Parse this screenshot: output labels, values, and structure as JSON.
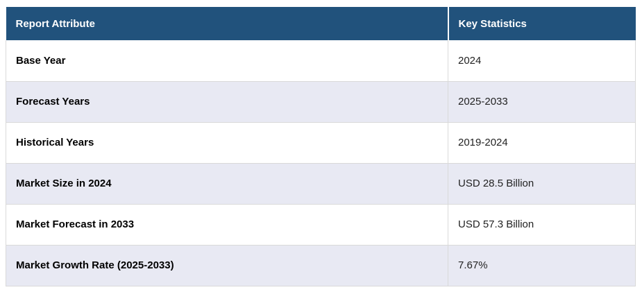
{
  "table": {
    "columns": [
      {
        "label": "Report Attribute"
      },
      {
        "label": "Key Statistics"
      }
    ],
    "rows": [
      {
        "attribute": "Base Year",
        "value": "2024"
      },
      {
        "attribute": "Forecast Years",
        "value": "2025-2033"
      },
      {
        "attribute": "Historical Years",
        "value": "2019-2024"
      },
      {
        "attribute": "Market Size in 2024",
        "value": "USD 28.5 Billion"
      },
      {
        "attribute": "Market Forecast in 2033",
        "value": "USD 57.3 Billion"
      },
      {
        "attribute": "Market Growth Rate (2025-2033)",
        "value": "7.67%"
      }
    ],
    "colors": {
      "header_bg": "#21527c",
      "header_text": "#ffffff",
      "row_bg": "#ffffff",
      "row_alt_bg": "#e8e9f3",
      "grid_line": "#d9d9d9",
      "attribute_text": "#000000",
      "value_text": "#222222"
    }
  }
}
